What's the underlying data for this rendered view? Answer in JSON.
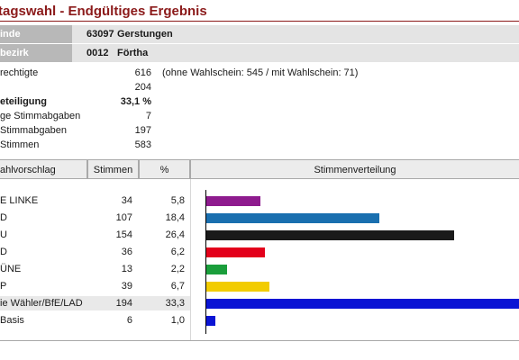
{
  "title": "tagswahl - Endgültiges Ergebnis",
  "info": [
    {
      "label": "inde",
      "number": "63097",
      "name": "Gerstungen"
    },
    {
      "label": "bezirk",
      "number": "0012",
      "name": "Förtha"
    }
  ],
  "stats": [
    {
      "label": "rechtigte",
      "value": "616",
      "note": "(ohne Wahlschein: 545 / mit Wahlschein: 71)",
      "bold": false
    },
    {
      "label": "",
      "value": "204",
      "note": "",
      "bold": false
    },
    {
      "label": "eteiligung",
      "value": "33,1 %",
      "note": "",
      "bold": true
    },
    {
      "label": "ge Stimmabgaben",
      "value": "7",
      "note": "",
      "bold": false
    },
    {
      "label": " Stimmabgaben",
      "value": "197",
      "note": "",
      "bold": false
    },
    {
      "label": " Stimmen",
      "value": "583",
      "note": "",
      "bold": false
    }
  ],
  "table": {
    "headers": {
      "party": "ahlvorschlag",
      "votes": "Stimmen",
      "pct": "%",
      "chart": "Stimmenverteilung"
    },
    "rows": [
      {
        "party": "E LINKE",
        "votes": "34",
        "pct": "5,8",
        "share": 5.8,
        "color": "#8e1b8e"
      },
      {
        "party": "D",
        "votes": "107",
        "pct": "18,4",
        "share": 18.4,
        "color": "#1a6faf"
      },
      {
        "party": "U",
        "votes": "154",
        "pct": "26,4",
        "share": 26.4,
        "color": "#1a1a1a"
      },
      {
        "party": "D",
        "votes": "36",
        "pct": "6,2",
        "share": 6.2,
        "color": "#e3001b"
      },
      {
        "party": "ÜNE",
        "votes": "13",
        "pct": "2,2",
        "share": 2.2,
        "color": "#1a9e3b"
      },
      {
        "party": "P",
        "votes": "39",
        "pct": "6,7",
        "share": 6.7,
        "color": "#f2cc00"
      },
      {
        "party": "ie Wähler/BfE/LAD",
        "votes": "194",
        "pct": "33,3",
        "share": 33.3,
        "color": "#0a14d4"
      },
      {
        "party": "Basis",
        "votes": "6",
        "pct": "1,0",
        "share": 1.0,
        "color": "#0a14d4"
      }
    ]
  }
}
